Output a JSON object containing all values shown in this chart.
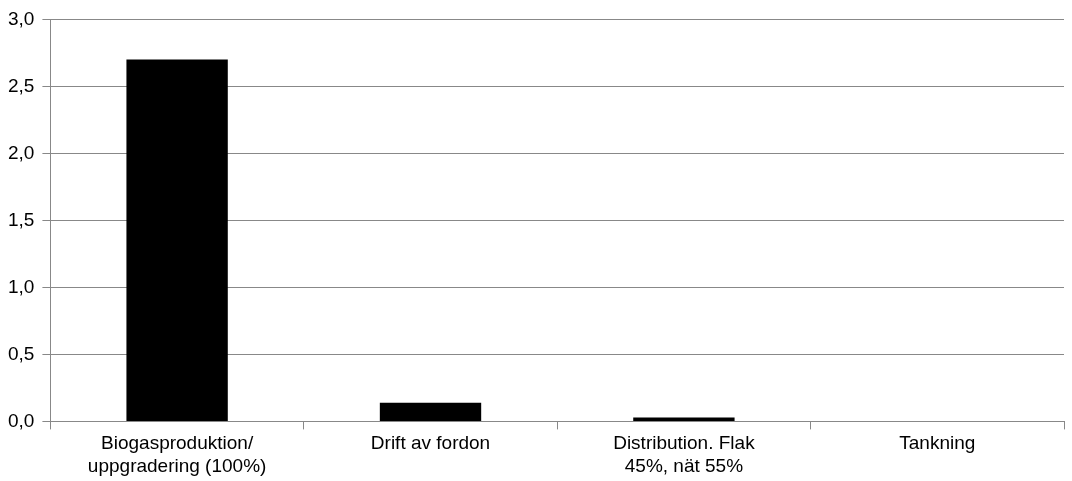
{
  "chart_data": {
    "type": "bar",
    "categories": [
      "Biogasproduktion/ uppgradering (100%)",
      "Drift av fordon",
      "Distribution. Flak 45%, nät 55%",
      "Tankning"
    ],
    "values": [
      2.7,
      0.14,
      0.03,
      0
    ],
    "color": "#000000",
    "ylim": [
      0,
      3
    ],
    "yticks": [
      {
        "value": 0,
        "label": "0,0"
      },
      {
        "value": 0.5,
        "label": "0,5"
      },
      {
        "value": 1,
        "label": "1,0"
      },
      {
        "value": 1.5,
        "label": "1,5"
      },
      {
        "value": 2,
        "label": "2,0"
      },
      {
        "value": 2.5,
        "label": "2,5"
      },
      {
        "value": 3,
        "label": "3,0"
      }
    ],
    "grid": "y",
    "legend": false
  }
}
